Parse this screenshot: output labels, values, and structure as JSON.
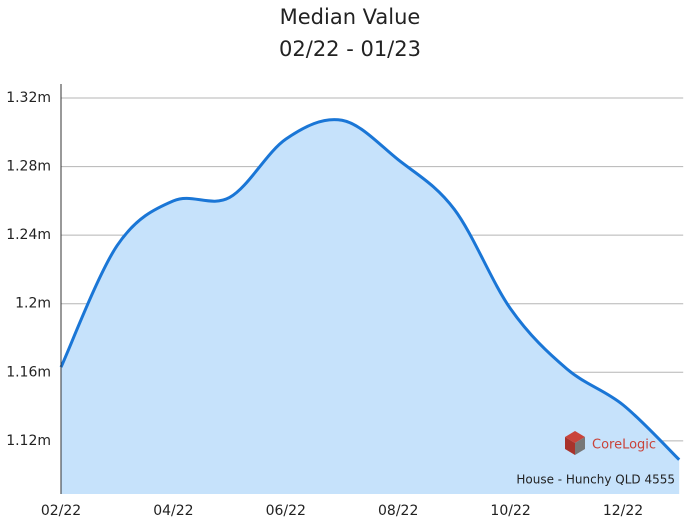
{
  "chart_data": {
    "type": "area",
    "title": "Median Value",
    "subtitle": "02/22 - 01/23",
    "categories": [
      "02/22",
      null,
      "04/22",
      null,
      "06/22",
      null,
      "08/22",
      null,
      "10/22",
      null,
      "12/22",
      null
    ],
    "series": [
      {
        "name": "House - Hunchy QLD 4555",
        "color": "#1a76d6",
        "fill": "#c6e2fb",
        "values": [
          1163000,
          1234000,
          1260000,
          1262000,
          1296000,
          1307000,
          1284000,
          1255000,
          1197000,
          1162000,
          1141000,
          1109000
        ]
      }
    ],
    "ylim": [
      1089000,
      1320000
    ],
    "yticks": [
      {
        "value": 1120000,
        "label": "1.12m"
      },
      {
        "value": 1160000,
        "label": "1.16m"
      },
      {
        "value": 1200000,
        "label": "1.2m"
      },
      {
        "value": 1240000,
        "label": "1.24m"
      },
      {
        "value": 1280000,
        "label": "1.28m"
      },
      {
        "value": 1320000,
        "label": "1.32m"
      }
    ],
    "grid": true,
    "brand": "CoreLogic"
  }
}
